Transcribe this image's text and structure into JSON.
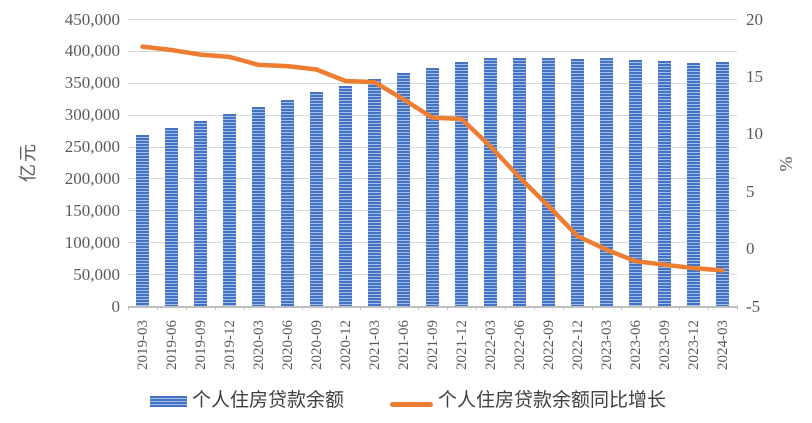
{
  "chart_data": {
    "type": "bar",
    "subtype": "bar+line combo, dual axis",
    "categories": [
      "2019-03",
      "2019-06",
      "2019-09",
      "2019-12",
      "2020-03",
      "2020-06",
      "2020-09",
      "2020-12",
      "2021-03",
      "2021-06",
      "2021-09",
      "2021-12",
      "2022-03",
      "2022-06",
      "2022-09",
      "2022-12",
      "2023-03",
      "2023-06",
      "2023-09",
      "2023-12",
      "2024-03"
    ],
    "series": [
      {
        "name": "个人住房贷款余额",
        "type": "bar",
        "axis": "left",
        "values": [
          268700,
          279600,
          290500,
          300700,
          311600,
          323600,
          336000,
          344400,
          356700,
          365800,
          373700,
          383200,
          388400,
          388600,
          389100,
          388000,
          389400,
          386000,
          384200,
          381700,
          381900
        ]
      },
      {
        "name": "个人住房贷款余额同比增长",
        "type": "line",
        "axis": "right",
        "values": [
          17.6,
          17.3,
          16.9,
          16.7,
          16.0,
          15.9,
          15.6,
          14.6,
          14.5,
          13.0,
          11.4,
          11.3,
          8.9,
          6.2,
          3.7,
          1.1,
          -0.1,
          -1.1,
          -1.4,
          -1.7,
          -1.9
        ]
      }
    ],
    "left_axis": {
      "label": "亿元",
      "min": 0,
      "max": 450000,
      "step": 50000,
      "ticks": [
        "450,000",
        "400,000",
        "350,000",
        "300,000",
        "250,000",
        "200,000",
        "150,000",
        "100,000",
        "50,000",
        "0"
      ]
    },
    "right_axis": {
      "label": "%",
      "min": -5,
      "max": 20,
      "step": 5,
      "ticks": [
        "20",
        "15",
        "10",
        "5",
        "0",
        "-5"
      ]
    },
    "grid": true,
    "legend_position": "bottom",
    "title": "",
    "colors": {
      "bar": "#4472C4",
      "bar_stripe": "#A3BEE3",
      "line": "#ED7D31",
      "gridline": "#D9D9D9",
      "axis_line": "#BFBFBF",
      "tick_text": "#595959",
      "legend_text": "#404040"
    }
  }
}
